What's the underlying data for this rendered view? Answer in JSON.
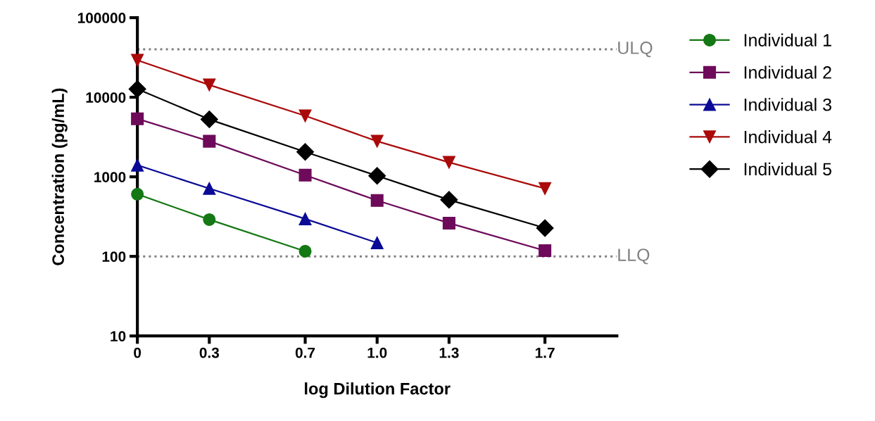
{
  "chart_data": {
    "type": "line",
    "xlabel": "log Dilution Factor",
    "ylabel": "Concentration (pg/mL)",
    "log": "y",
    "xlim": [
      0,
      2.0
    ],
    "ylim": [
      10,
      100000
    ],
    "xticks": [
      0,
      0.3,
      0.7,
      {
        "value": 1.0,
        "label": "1.0"
      },
      1.3,
      1.7
    ],
    "yticks": [
      10,
      100,
      1000,
      10000,
      100000
    ],
    "grid": false,
    "legend": "right",
    "line_style": "solid",
    "series": [
      {
        "name": "Individual 1",
        "color": "#147814",
        "marker": "circle",
        "x": [
          0,
          0.3,
          0.7
        ],
        "values": [
          605,
          290,
          116
        ]
      },
      {
        "name": "Individual 2",
        "color": "#6e0a5a",
        "marker": "square",
        "x": [
          0,
          0.3,
          0.7,
          1.0,
          1.3,
          1.7
        ],
        "values": [
          5370,
          2800,
          1050,
          504,
          262,
          118
        ]
      },
      {
        "name": "Individual 3",
        "color": "#0a0a96",
        "marker": "triangle",
        "x": [
          0,
          0.3,
          0.7,
          1.0
        ],
        "values": [
          1400,
          713,
          296,
          148
        ]
      },
      {
        "name": "Individual 4",
        "color": "#aa0a0a",
        "marker": "triangle_down",
        "x": [
          0,
          0.3,
          0.7,
          1.0,
          1.3,
          1.7
        ],
        "values": [
          29200,
          14300,
          5840,
          2800,
          1520,
          713
        ]
      },
      {
        "name": "Individual 5",
        "color": "#000000",
        "marker": "diamond",
        "x": [
          0,
          0.3,
          0.7,
          1.0,
          1.3,
          1.7
        ],
        "values": [
          12700,
          5270,
          2060,
          1030,
          514,
          227
        ]
      }
    ],
    "ref_lines": [
      {
        "axis": "y",
        "value": 40000,
        "label": "ULQ",
        "color": "#808080",
        "line_style": "dotted"
      },
      {
        "axis": "y",
        "value": 100,
        "label": "LLQ",
        "color": "#808080",
        "line_style": "dotted"
      }
    ]
  }
}
